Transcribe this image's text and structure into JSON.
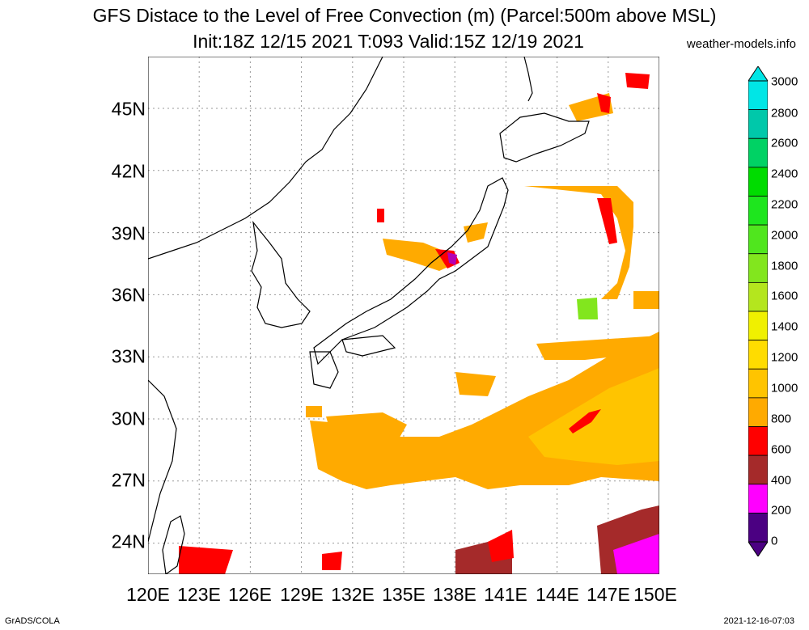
{
  "title": {
    "line1": "GFS Distace to the Level of Free Convection (m) (Parcel:500m above MSL)",
    "line2": "Init:18Z 12/15 2021 T:093 Valid:15Z 12/19 2021"
  },
  "source": "weather-models.info",
  "footer": {
    "left": "GrADS/COLA",
    "right": "2021-12-16-07:03"
  },
  "x_ticks": [
    "120E",
    "123E",
    "126E",
    "129E",
    "132E",
    "135E",
    "138E",
    "141E",
    "144E",
    "147E",
    "150E"
  ],
  "y_ticks": [
    "45N",
    "42N",
    "39N",
    "36N",
    "33N",
    "30N",
    "27N",
    "24N"
  ],
  "colorbar": {
    "labels": [
      "3000",
      "2800",
      "2600",
      "2400",
      "2200",
      "2000",
      "1800",
      "1600",
      "1400",
      "1200",
      "1000",
      "800",
      "600",
      "400",
      "200",
      "0"
    ],
    "colors": [
      "#00e6e6",
      "#00c8aa",
      "#00d264",
      "#00dc00",
      "#1ee61e",
      "#50e61e",
      "#82e61e",
      "#b4e61e",
      "#f0f000",
      "#ffdc00",
      "#ffc400",
      "#ffaa00",
      "#ff0000",
      "#a52a2a",
      "#ff00ff",
      "#4b0082"
    ]
  },
  "chart_data": {
    "type": "heatmap",
    "xlim": [
      120,
      150
    ],
    "ylim": [
      22.5,
      47.5
    ],
    "x_ticks": [
      120,
      123,
      126,
      129,
      132,
      135,
      138,
      141,
      144,
      147,
      150
    ],
    "y_ticks": [
      45,
      42,
      39,
      36,
      33,
      30,
      27,
      24
    ],
    "grid": true,
    "variable": "Distance to the Level of Free Convection (m)",
    "levels": [
      0,
      200,
      400,
      600,
      800,
      1000,
      1200,
      1400,
      1600,
      1800,
      2000,
      2200,
      2400,
      2600,
      2800,
      3000
    ]
  }
}
